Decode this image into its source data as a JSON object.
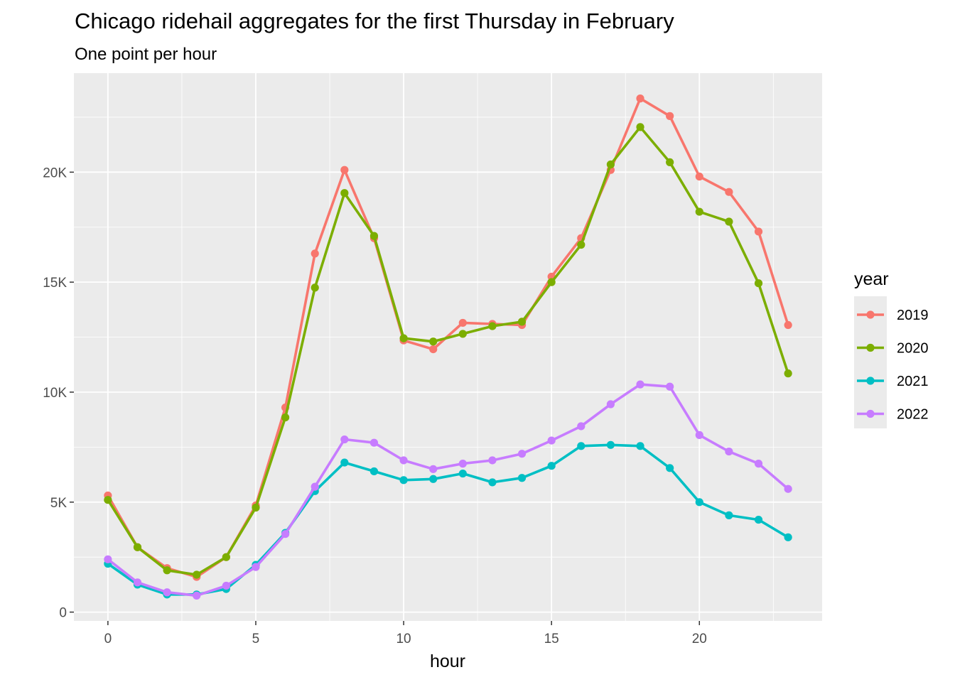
{
  "chart_data": {
    "type": "line",
    "title": "Chicago ridehail aggregates for the first Thursday in February",
    "subtitle": "One point per hour",
    "xlabel": "hour",
    "ylabel": "",
    "xlim": [
      -1.15,
      24.15
    ],
    "ylim": [
      -400,
      24500
    ],
    "x_ticks": [
      0,
      5,
      10,
      15,
      20
    ],
    "x_tick_labels": [
      "0",
      "5",
      "10",
      "15",
      "20"
    ],
    "y_ticks": [
      0,
      5000,
      10000,
      15000,
      20000
    ],
    "y_tick_labels": [
      "0",
      "5K",
      "10K",
      "15K",
      "20K"
    ],
    "grid": true,
    "legend_title": "year",
    "legend_position": "right",
    "x": [
      0,
      1,
      2,
      3,
      4,
      5,
      6,
      7,
      8,
      9,
      10,
      11,
      12,
      13,
      14,
      15,
      16,
      17,
      18,
      19,
      20,
      21,
      22,
      23
    ],
    "series": [
      {
        "name": "2019",
        "color": "#F8766D",
        "values": [
          5300,
          2950,
          2000,
          1600,
          2500,
          4850,
          9300,
          16300,
          20100,
          17000,
          12350,
          11950,
          13150,
          13100,
          13050,
          15250,
          17000,
          20100,
          23350,
          22550,
          19800,
          19100,
          17300,
          13050
        ]
      },
      {
        "name": "2020",
        "color": "#7CAE00",
        "values": [
          5100,
          2950,
          1900,
          1700,
          2500,
          4750,
          8850,
          14750,
          19050,
          17100,
          12450,
          12300,
          12650,
          13000,
          13200,
          15000,
          16700,
          20350,
          22050,
          20450,
          18200,
          17750,
          14950,
          10850
        ]
      },
      {
        "name": "2021",
        "color": "#00BFC4",
        "values": [
          2200,
          1250,
          800,
          800,
          1050,
          2150,
          3600,
          5500,
          6800,
          6400,
          6000,
          6050,
          6300,
          5900,
          6100,
          6650,
          7550,
          7600,
          7550,
          6550,
          5000,
          4400,
          4200,
          3400
        ]
      },
      {
        "name": "2022",
        "color": "#C77CFF",
        "values": [
          2400,
          1350,
          900,
          750,
          1200,
          2050,
          3550,
          5700,
          7850,
          7700,
          6900,
          6500,
          6750,
          6900,
          7200,
          7800,
          8450,
          9450,
          10350,
          10250,
          8050,
          7300,
          6750,
          5600
        ]
      }
    ]
  }
}
